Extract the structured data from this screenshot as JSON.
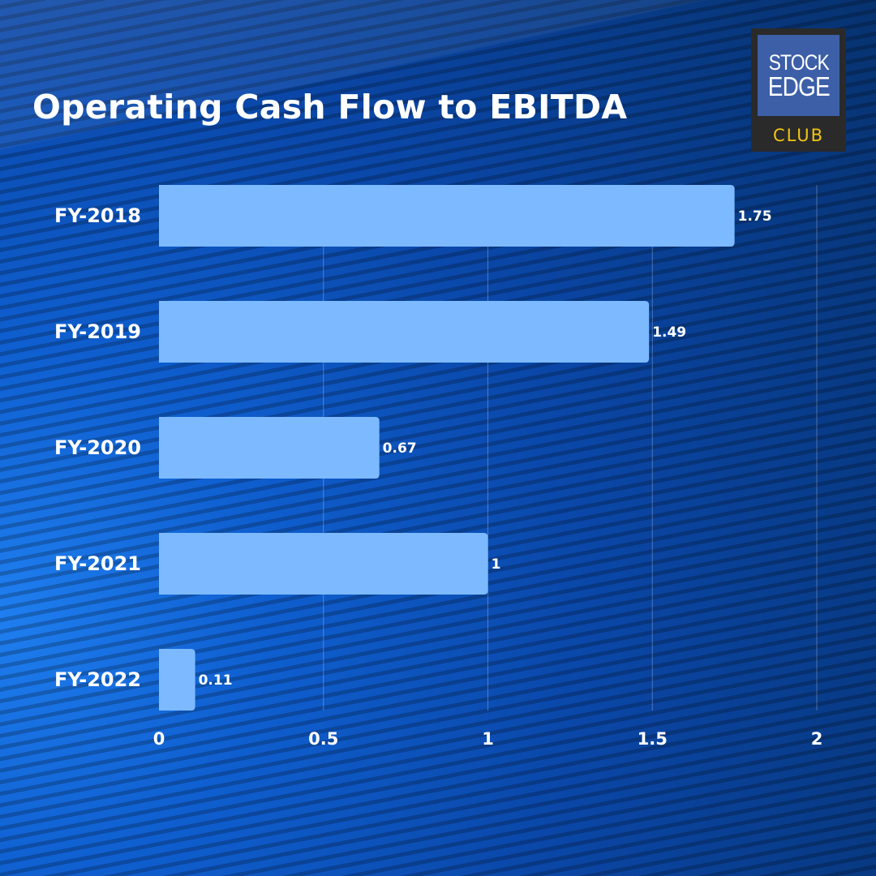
{
  "header": {
    "title": "Operating Cash Flow to EBITDA"
  },
  "logo": {
    "line1": "STOCK",
    "line2": "EDGE",
    "line3": "CLUB"
  },
  "colors": {
    "bar": "#7cb9ff",
    "grid": "rgba(255,255,255,0.28)",
    "logo_accent": "#f3c414"
  },
  "chart_data": {
    "type": "bar",
    "orientation": "horizontal",
    "title": "Operating Cash Flow to EBITDA",
    "categories": [
      "FY-2018",
      "FY-2019",
      "FY-2020",
      "FY-2021",
      "FY-2022"
    ],
    "values": [
      1.75,
      1.49,
      0.67,
      1,
      0.11
    ],
    "value_labels": [
      "1.75",
      "1.49",
      "0.67",
      "1",
      "0.11"
    ],
    "xlim": [
      0,
      2
    ],
    "x_ticks": [
      0,
      0.5,
      1,
      1.5,
      2
    ],
    "x_tick_labels": [
      "0",
      "0.5",
      "1",
      "1.5",
      "2"
    ],
    "grid": true,
    "legend": false,
    "xlabel": "",
    "ylabel": ""
  }
}
